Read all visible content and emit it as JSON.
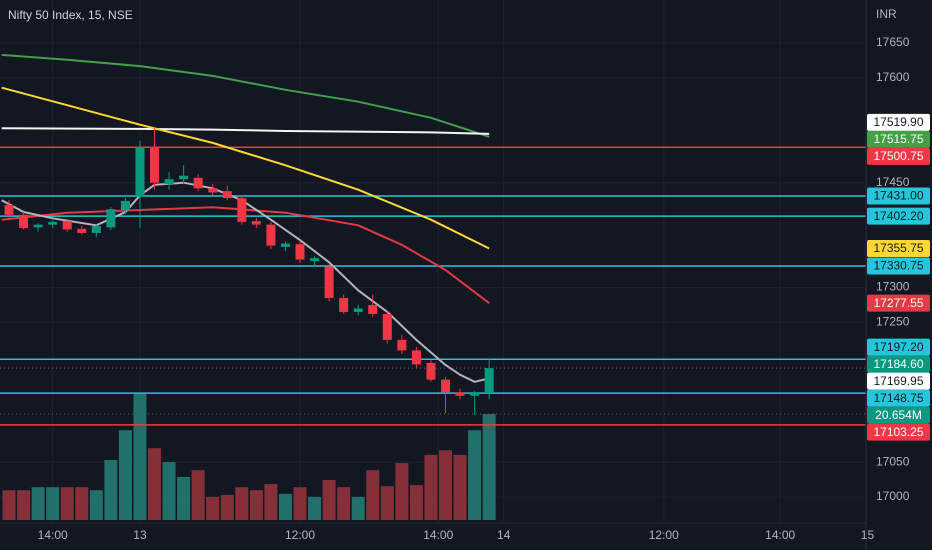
{
  "chart_data": {
    "type": "candlestick",
    "title": "Nifty 50 Index, 15, NSE",
    "currency": "INR",
    "background": "#131722",
    "up_color": "#089981",
    "down_color": "#f23645",
    "volume_up_color": "#22706a",
    "volume_down_color": "#853038",
    "x": [
      -9,
      -8,
      -7,
      -6,
      -5,
      -4,
      -3,
      -2,
      -1,
      0,
      1,
      2,
      3,
      4,
      5,
      6,
      7,
      8,
      9,
      10,
      11,
      12,
      13,
      14,
      15,
      16,
      17,
      18,
      19,
      20,
      21,
      22,
      23,
      24
    ],
    "open": [
      17418,
      17404,
      17386,
      17390,
      17395,
      17384,
      17378,
      17386,
      17410,
      17430,
      17500,
      17448,
      17455,
      17457,
      17442,
      17438,
      17428,
      17395,
      17390,
      17358,
      17362,
      17338,
      17330,
      17285,
      17265,
      17275,
      17262,
      17225,
      17210,
      17192,
      17168,
      17150,
      17145,
      17148.75
    ],
    "high": [
      17425,
      17408,
      17392,
      17396,
      17398,
      17388,
      17390,
      17415,
      17428,
      17510,
      17530,
      17465,
      17475,
      17462,
      17448,
      17446,
      17432,
      17400,
      17394,
      17366,
      17367,
      17345,
      17335,
      17290,
      17275,
      17290,
      17266,
      17232,
      17215,
      17196,
      17172,
      17155,
      17152,
      17197.2
    ],
    "low": [
      17400,
      17383,
      17380,
      17385,
      17380,
      17376,
      17372,
      17382,
      17405,
      17385,
      17440,
      17440,
      17448,
      17438,
      17432,
      17425,
      17390,
      17385,
      17355,
      17352,
      17335,
      17330,
      17280,
      17262,
      17260,
      17258,
      17220,
      17205,
      17185,
      17165,
      17120,
      17140,
      17118,
      17140
    ],
    "close": [
      17404,
      17385,
      17390,
      17394,
      17383,
      17378,
      17388,
      17412,
      17424,
      17500,
      17450,
      17455,
      17460,
      17442,
      17436,
      17428,
      17394,
      17390,
      17360,
      17363,
      17340,
      17342,
      17285,
      17265,
      17270,
      17262,
      17225,
      17210,
      17190,
      17168,
      17150,
      17145,
      17149,
      17184.6
    ],
    "volume": {
      "values": [
        5.8,
        5.8,
        6.4,
        6.4,
        6.4,
        6.4,
        5.8,
        11.7,
        17.5,
        24.6,
        14.0,
        11.3,
        8.4,
        9.7,
        4.5,
        4.9,
        6.4,
        5.8,
        7.0,
        5.1,
        6.4,
        4.5,
        7.8,
        6.4,
        4.5,
        9.7,
        6.6,
        11.1,
        6.8,
        12.7,
        13.6,
        12.7,
        17.5,
        20.654
      ],
      "value_labels": [
        null,
        null,
        null,
        null,
        null,
        null,
        null,
        null,
        null,
        null,
        null,
        null,
        null,
        null,
        null,
        null,
        null,
        null,
        null,
        null,
        null,
        null,
        null,
        null,
        null,
        null,
        null,
        null,
        null,
        null,
        null,
        null,
        null,
        "20.654M"
      ],
      "label_color": "#089981"
    },
    "moving_averages": [
      {
        "color": "#43a047",
        "x": [
          -9.5,
          -5,
          0,
          5,
          10,
          15,
          20,
          24
        ],
        "values": [
          17633,
          17626,
          17617,
          17603,
          17583,
          17566,
          17543,
          17515.75
        ]
      },
      {
        "color": "#f5f5f5",
        "x": [
          -9.5,
          0,
          5,
          10,
          20,
          24
        ],
        "values": [
          17528,
          17527,
          17526,
          17524,
          17522,
          17519.9
        ]
      },
      {
        "color": "#fdd835",
        "x": [
          -9.5,
          -5,
          0,
          5,
          10,
          15,
          20,
          24
        ],
        "values": [
          17586,
          17561,
          17533,
          17507,
          17475,
          17440,
          17397,
          17355.75
        ]
      },
      {
        "color": "#e53945",
        "x": [
          -9.5,
          -5,
          0,
          5,
          10,
          15,
          18,
          21,
          24
        ],
        "values": [
          17397,
          17407,
          17411,
          17415,
          17407,
          17389,
          17361,
          17325,
          17277.55
        ]
      },
      {
        "color": "#b2b5be",
        "x": [
          -9.5,
          -8,
          -6,
          -3,
          -1,
          0,
          1,
          3,
          5,
          7,
          9,
          11,
          13,
          15,
          17,
          19,
          21,
          22,
          23,
          24
        ],
        "values": [
          17425,
          17408,
          17399,
          17389,
          17408,
          17432,
          17447,
          17450,
          17442,
          17425,
          17397,
          17368,
          17336,
          17296,
          17265,
          17225,
          17189,
          17175,
          17165,
          17169.95
        ]
      }
    ],
    "levels": [
      {
        "value": 17500.75,
        "label": "17500.75",
        "color": "#f23645",
        "text_color": "#ffffff"
      },
      {
        "value": 17431,
        "label": "17431.00",
        "color": "#26c6da",
        "text_color": "#131722"
      },
      {
        "value": 17402.2,
        "label": "17402.20",
        "color": "#26c6da",
        "text_color": "#131722"
      },
      {
        "value": 17330.75,
        "label": "17330.75",
        "color": "#26c6da",
        "text_color": "#131722"
      },
      {
        "value": 17197.2,
        "label": "17197.20",
        "color": "#26c6da",
        "text_color": "#131722"
      },
      {
        "value": 17148.75,
        "label": "17148.75",
        "color": "#26c6da",
        "text_color": "#131722"
      },
      {
        "value": 17103.25,
        "label": "17103.25",
        "color": "#f23645",
        "text_color": "#ffffff"
      }
    ],
    "tags": [
      {
        "value": 17519.9,
        "label": "17519.90",
        "color": "#ffffff",
        "text_color": "#131722"
      },
      {
        "value": 17515.75,
        "label": "17515.75",
        "color": "#43a047",
        "text_color": "#ffffff"
      },
      {
        "value": 17355.75,
        "label": "17355.75",
        "color": "#fdd835",
        "text_color": "#131722"
      },
      {
        "value": 17277.55,
        "label": "17277.55",
        "color": "#e53945",
        "text_color": "#ffffff"
      },
      {
        "value": 17184.6,
        "label": "17184.60",
        "color": "#089981",
        "text_color": "#ffffff"
      },
      {
        "value": 17169.95,
        "label": "17169.95",
        "color": "#ffffff",
        "text_color": "#131722"
      }
    ],
    "xlim": [
      -9.62,
      49.9
    ],
    "ylim": [
      16962.8,
      17711.6
    ],
    "yticks": [
      17000,
      17050,
      17250,
      17300,
      17450,
      17600,
      17650
    ],
    "xticks": [
      {
        "value": -6,
        "label": "14:00"
      },
      {
        "value": 0,
        "label": "13"
      },
      {
        "value": 11,
        "label": "12:00"
      },
      {
        "value": 20.5,
        "label": "14:00"
      },
      {
        "value": 25,
        "label": "14"
      },
      {
        "value": 36,
        "label": "12:00"
      },
      {
        "value": 44,
        "label": "14:00"
      },
      {
        "value": 50,
        "label": "15"
      }
    ],
    "grid": true
  }
}
